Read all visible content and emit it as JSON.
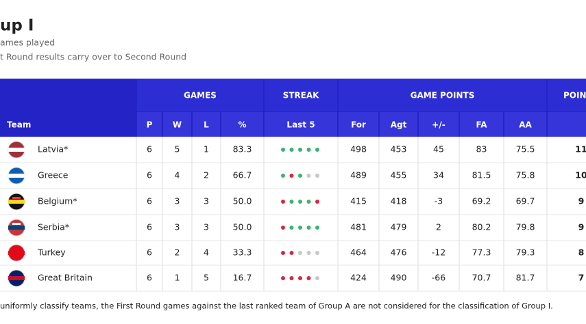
{
  "header": {
    "title": "up I",
    "subtitle": "ames played",
    "note": "t Round results carry over to Second Round"
  },
  "table": {
    "groups": [
      "GAMES",
      "STREAK",
      "GAME POINTS",
      "POIN"
    ],
    "columns": [
      "Team",
      "P",
      "W",
      "L",
      "%",
      "Last 5",
      "For",
      "Agt",
      "+/-",
      "FA",
      "AA"
    ],
    "rows": [
      [
        "Latvia*",
        "6",
        "5",
        "1",
        "83.3",
        "498",
        "453",
        "45",
        "83",
        "75.5",
        "11"
      ],
      [
        "Greece",
        "6",
        "4",
        "2",
        "66.7",
        "489",
        "455",
        "34",
        "81.5",
        "75.8",
        "10"
      ],
      [
        "Belgium*",
        "6",
        "3",
        "3",
        "50.0",
        "415",
        "418",
        "-3",
        "69.2",
        "69.7",
        "9"
      ],
      [
        "Serbia*",
        "6",
        "3",
        "3",
        "50.0",
        "481",
        "479",
        "2",
        "80.2",
        "79.8",
        "9"
      ],
      [
        "Turkey",
        "6",
        "2",
        "4",
        "33.3",
        "464",
        "476",
        "-12",
        "77.3",
        "79.3",
        "8"
      ],
      [
        "Great Britain",
        "6",
        "1",
        "5",
        "16.7",
        "424",
        "490",
        "-66",
        "70.7",
        "81.7",
        "7"
      ]
    ],
    "streak": [
      [
        "#3cb371",
        "#3cb371",
        "#3cb371",
        "#3cb371",
        "#3cb371"
      ],
      [
        "#3cb371",
        "#d6283f",
        "#3cb371",
        "#c8c8c8",
        "#c8c8c8"
      ],
      [
        "#d6283f",
        "#3cb371",
        "#3cb371",
        "#3cb371",
        "#d6283f"
      ],
      [
        "#d6283f",
        "#3cb371",
        "#3cb371",
        "#3cb371",
        "#3cb371"
      ],
      [
        "#d6283f",
        "#d6283f",
        "#c8c8c8",
        "#c8c8c8",
        "#c8c8c8"
      ],
      [
        "#d6283f",
        "#d6283f",
        "#d6283f",
        "#d6283f",
        "#c8c8c8"
      ]
    ]
  },
  "footer": "uniformly classify teams, the First Round games against the last ranked team of Group A are not considered for the classification of Group I."
}
